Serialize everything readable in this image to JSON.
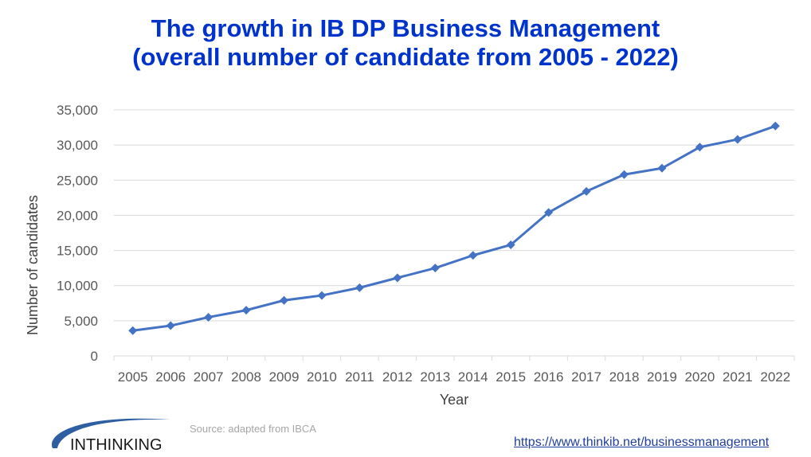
{
  "title_line1": "The growth in IB DP Business Management",
  "title_line2": "(overall number of candidate from 2005 - 2022)",
  "source_text": "Source:  adapted from IBCA",
  "link_text": "https://www.thinkib.net/businessmanagement",
  "logo_text": "INTHINKING",
  "colors": {
    "title": "#0033cc",
    "series": "#4472c4",
    "grid": "#d9d9d9"
  },
  "chart_data": {
    "type": "line",
    "title": "The growth in IB DP Business Management (overall number of candidate from 2005 - 2022)",
    "xlabel": "Year",
    "ylabel": "Number of candidates",
    "ylim": [
      0,
      35000
    ],
    "yticks": [
      0,
      5000,
      10000,
      15000,
      20000,
      25000,
      30000,
      35000
    ],
    "ytick_labels": [
      "0",
      "5,000",
      "10,000",
      "15,000",
      "20,000",
      "25,000",
      "30,000",
      "35,000"
    ],
    "grid": true,
    "legend": "none",
    "categories": [
      "2005",
      "2006",
      "2007",
      "2008",
      "2009",
      "2010",
      "2011",
      "2012",
      "2013",
      "2014",
      "2015",
      "2016",
      "2017",
      "2018",
      "2019",
      "2020",
      "2021",
      "2022"
    ],
    "series": [
      {
        "name": "Candidates",
        "marker": "diamond",
        "values": [
          3600,
          4300,
          5500,
          6500,
          7900,
          8600,
          9700,
          11100,
          12500,
          14300,
          15800,
          20400,
          23400,
          25800,
          26700,
          29700,
          30800,
          32700
        ]
      }
    ]
  }
}
